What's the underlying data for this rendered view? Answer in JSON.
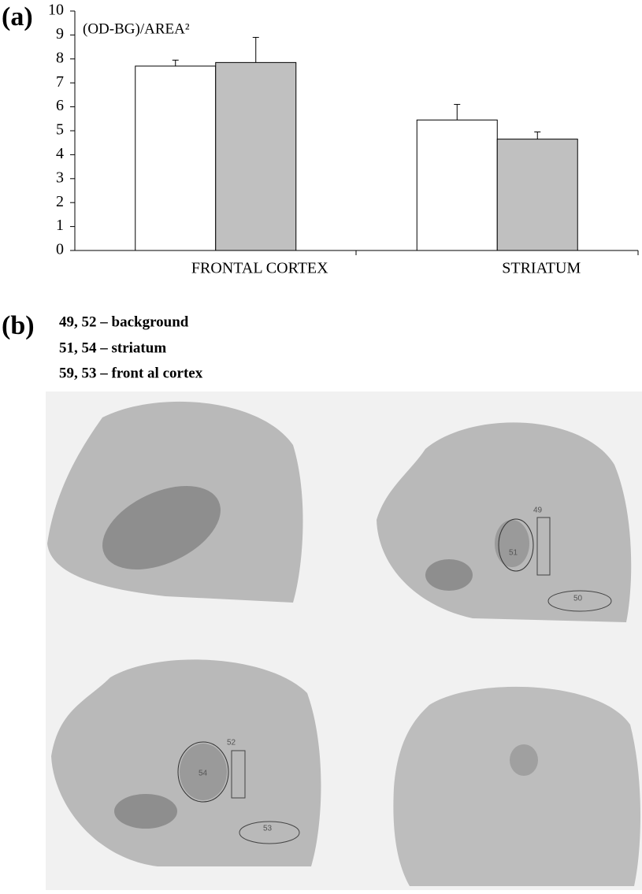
{
  "panel_a": {
    "label": "(a)"
  },
  "chart_data": {
    "type": "bar",
    "y_label": "(OD-BG)/AREA²",
    "categories": [
      "FRONTAL CORTEX",
      "STRIATUM"
    ],
    "series": [
      {
        "color": "#ffffff",
        "values": [
          7.7,
          5.45
        ],
        "errors": [
          0.25,
          0.65
        ]
      },
      {
        "color": "#c0c0c0",
        "values": [
          7.85,
          4.65
        ],
        "errors": [
          1.05,
          0.3
        ]
      }
    ],
    "ylim": [
      0,
      10
    ],
    "yticks": [
      0,
      1,
      2,
      3,
      4,
      5,
      6,
      7,
      8,
      9,
      10
    ]
  },
  "panel_b": {
    "label": "(b)",
    "legend": [
      "49, 52 – background",
      "51, 54 – striatum",
      "59, 53 – front al cortex"
    ],
    "roi_labels": [
      "49",
      "51",
      "50",
      "52",
      "54",
      "53"
    ]
  }
}
